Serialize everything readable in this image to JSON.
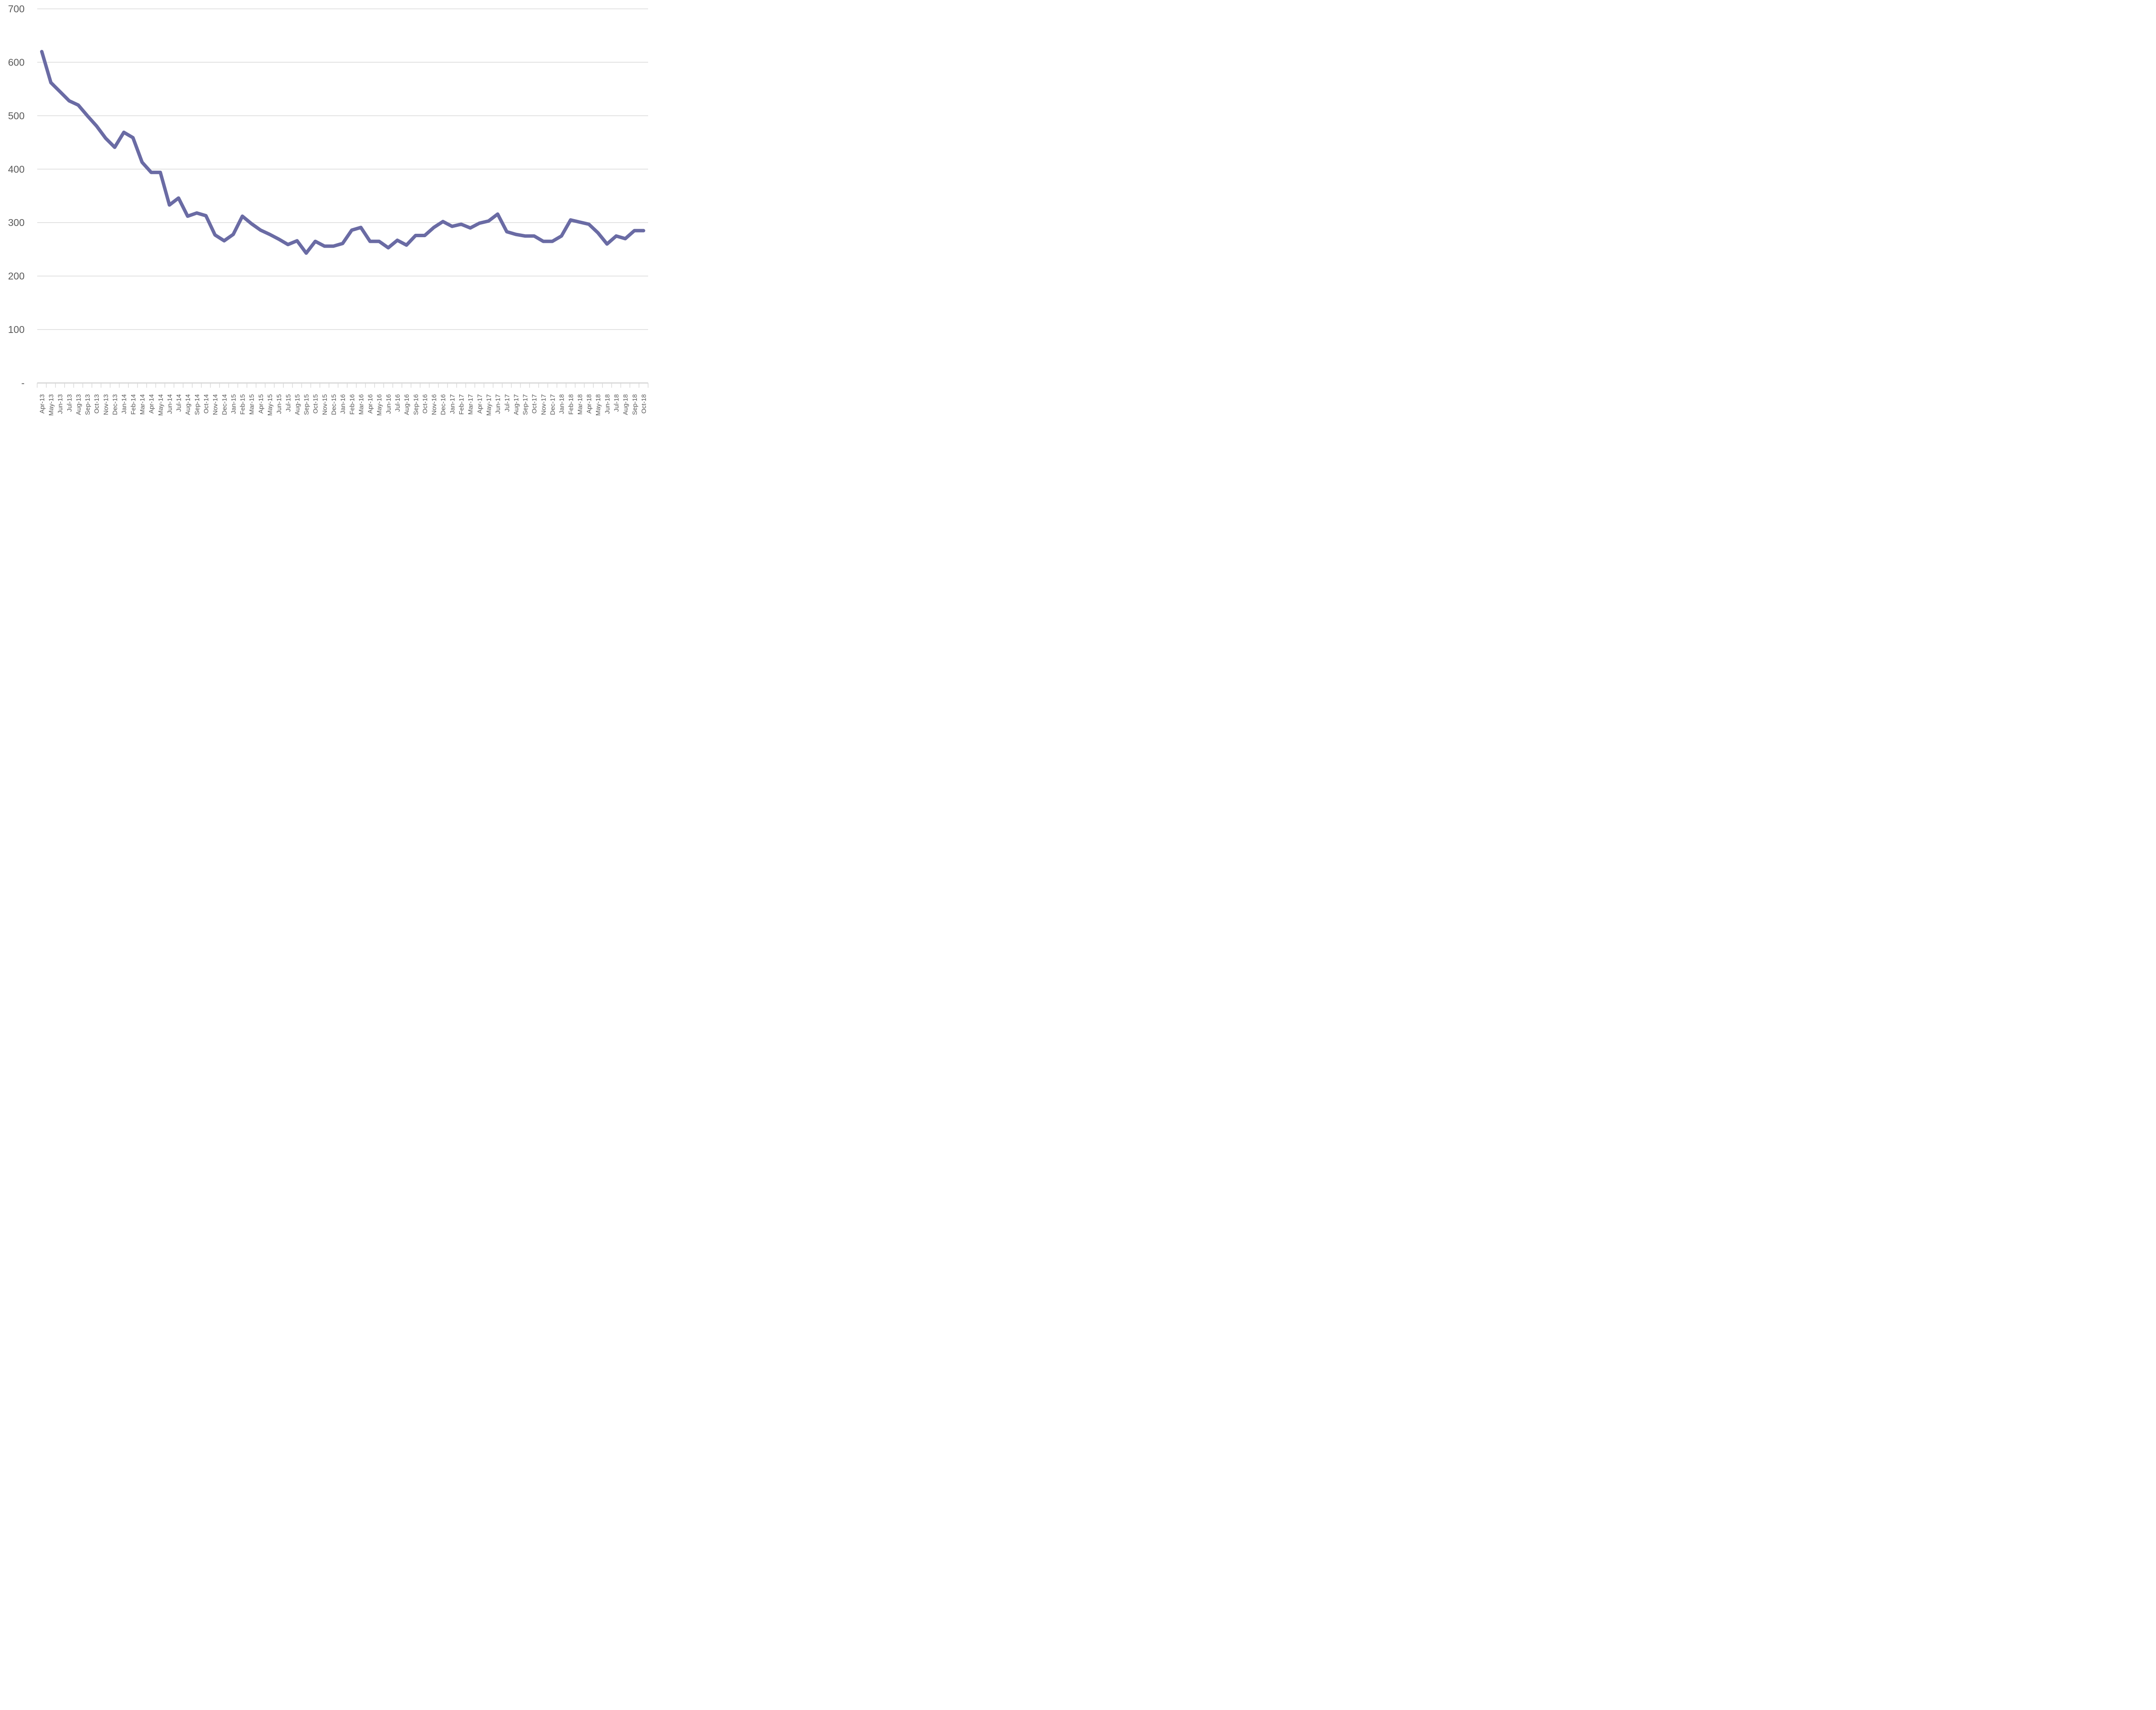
{
  "chart_data": {
    "type": "line",
    "categories": [
      "Apr-13",
      "May-13",
      "Jun-13",
      "Jul-13",
      "Aug-13",
      "Sep-13",
      "Oct-13",
      "Nov-13",
      "Dec-13",
      "Jan-14",
      "Feb-14",
      "Mar-14",
      "Apr-14",
      "May-14",
      "Jun-14",
      "Jul-14",
      "Aug-14",
      "Sep-14",
      "Oct-14",
      "Nov-14",
      "Dec-14",
      "Jan-15",
      "Feb-15",
      "Mar-15",
      "Apr-15",
      "May-15",
      "Jun-15",
      "Jul-15",
      "Aug-15",
      "Sep-15",
      "Oct-15",
      "Nov-15",
      "Dec-15",
      "Jan-16",
      "Feb-16",
      "Mar-16",
      "Apr-16",
      "May-16",
      "Jun-16",
      "Jul-16",
      "Aug-16",
      "Sep-16",
      "Oct-16",
      "Nov-16",
      "Dec-16",
      "Jan-17",
      "Feb-17",
      "Mar-17",
      "Apr-17",
      "May-17",
      "Jun-17",
      "Jul-17",
      "Aug-17",
      "Sep-17",
      "Oct-17",
      "Nov-17",
      "Dec-17",
      "Jan-18",
      "Feb-18",
      "Mar-18",
      "Apr-18",
      "May-18",
      "Jun-18",
      "Jul-18",
      "Aug-18",
      "Sep-18",
      "Oct-18"
    ],
    "values": [
      620,
      562,
      545,
      528,
      520,
      500,
      481,
      458,
      441,
      469,
      459,
      413,
      394,
      394,
      333,
      346,
      312,
      318,
      313,
      277,
      266,
      278,
      312,
      298,
      286,
      278,
      269,
      259,
      266,
      243,
      265,
      256,
      256,
      261,
      286,
      291,
      265,
      265,
      253,
      267,
      258,
      276,
      276,
      291,
      302,
      293,
      297,
      290,
      299,
      303,
      316,
      283,
      278,
      275,
      275,
      265,
      265,
      275,
      305,
      301,
      297,
      281,
      260,
      275,
      270,
      285,
      285
    ],
    "ylim": [
      0,
      700
    ],
    "ytick_interval": 100,
    "y_tick_labels": [
      "-",
      "100",
      "200",
      "300",
      "400",
      "500",
      "600",
      "700"
    ],
    "grid": "horizontal",
    "legend_position": "none",
    "colors": {
      "line": "#6A6BA4",
      "gridline": "#D9D9D9",
      "axis_line": "#D9D9D9",
      "tick": "#D9D9D9",
      "axis_label": "#595959",
      "background": "#FFFFFF"
    }
  }
}
